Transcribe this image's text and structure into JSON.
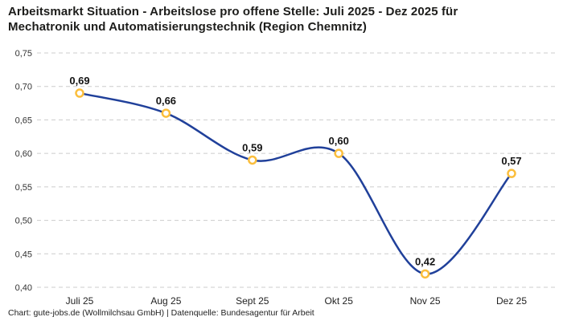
{
  "header": {
    "title": "Arbeitsmarkt Situation - Arbeitslose pro offene Stelle: Juli 2025 - Dez 2025 für Mechatronik und Automatisierungstechnik (Region Chemnitz)"
  },
  "footer": {
    "text": "Chart: gute-jobs.de (Wollmilchsau GmbH) | Datenquelle: Bundesagentur für Arbeit"
  },
  "colors": {
    "line": "#20409A",
    "marker_stroke": "#FBBE3C",
    "marker_fill": "#FFFFFF",
    "grid": "#CCCCCC",
    "title_text": "#1D1D1B",
    "tick_text": "#333333",
    "value_label_text": "#141414"
  },
  "chart_data": {
    "type": "line",
    "title": "Arbeitsmarkt Situation - Arbeitslose pro offene Stelle: Juli 2025 - Dez 2025 für Mechatronik und Automatisierungstechnik (Region Chemnitz)",
    "categories": [
      "Juli 25",
      "Aug 25",
      "Sept 25",
      "Okt 25",
      "Nov 25",
      "Dez 25"
    ],
    "values": [
      0.69,
      0.66,
      0.59,
      0.6,
      0.42,
      0.57
    ],
    "value_labels": [
      "0,69",
      "0,66",
      "0,59",
      "0,60",
      "0,42",
      "0,57"
    ],
    "y_ticks": [
      0.4,
      0.45,
      0.5,
      0.55,
      0.6,
      0.65,
      0.7,
      0.75
    ],
    "y_tick_labels": [
      "0,40",
      "0,45",
      "0,50",
      "0,55",
      "0,60",
      "0,65",
      "0,70",
      "0,75"
    ],
    "ylim": [
      0.4,
      0.75
    ],
    "xlabel": "",
    "ylabel": "",
    "grid": "horizontal-dashed",
    "legend": "none",
    "line_style": "smooth-curve",
    "marker_style": "open-circle-gold"
  }
}
